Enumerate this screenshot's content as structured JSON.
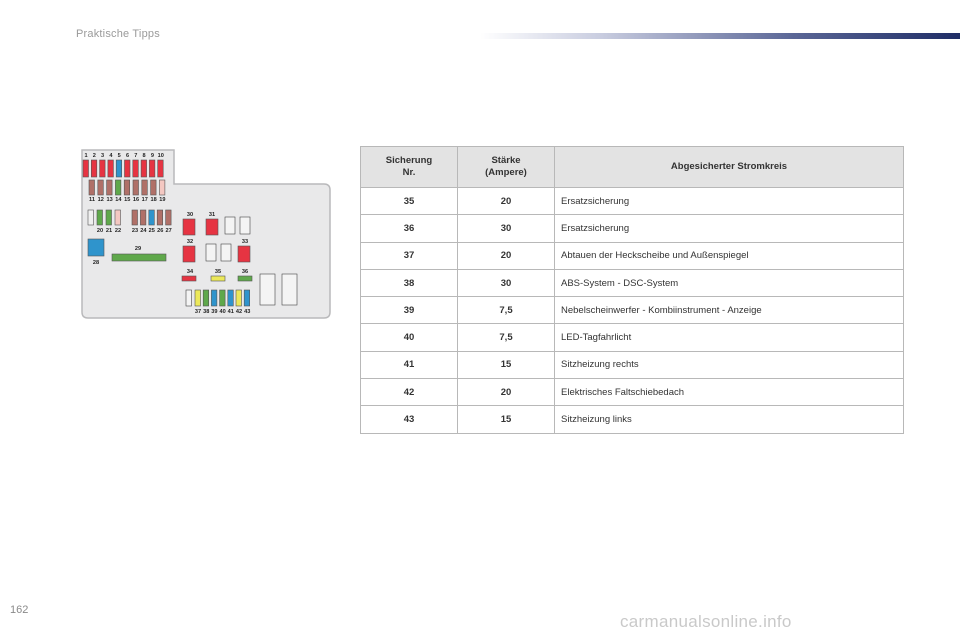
{
  "header": {
    "section_title": "Praktische Tipps"
  },
  "page": {
    "number": "162",
    "watermark": "carmanualsonline.info"
  },
  "colors": {
    "red": "#e63442",
    "brown": "#b07068",
    "green": "#5fa84b",
    "blue": "#2f94cc",
    "pink": "#f4c8c2",
    "yellow": "#ece85a",
    "header_bar": "#1f2d66"
  },
  "diagram": {
    "fuse_numbers": [
      "1",
      "2",
      "3",
      "4",
      "5",
      "6",
      "7",
      "8",
      "9",
      "10",
      "11",
      "12",
      "13",
      "14",
      "15",
      "16",
      "17",
      "18",
      "19",
      "20",
      "21",
      "22",
      "23",
      "24",
      "25",
      "26",
      "27",
      "28",
      "29",
      "30",
      "31",
      "32",
      "33",
      "34",
      "35",
      "36",
      "37",
      "38",
      "39",
      "40",
      "41",
      "42",
      "43"
    ]
  },
  "table": {
    "headers": {
      "fuse_no": "Sicherung\nNr.",
      "rating": "Stärke\n(Ampere)",
      "circuit": "Abgesicherter Stromkreis"
    },
    "rows": [
      {
        "no": "35",
        "amps": "20",
        "circuit": "Ersatzsicherung"
      },
      {
        "no": "36",
        "amps": "30",
        "circuit": "Ersatzsicherung"
      },
      {
        "no": "37",
        "amps": "20",
        "circuit": "Abtauen der Heckscheibe und Außenspiegel"
      },
      {
        "no": "38",
        "amps": "30",
        "circuit": "ABS-System - DSC-System"
      },
      {
        "no": "39",
        "amps": "7,5",
        "circuit": "Nebelscheinwerfer - Kombiinstrument - Anzeige"
      },
      {
        "no": "40",
        "amps": "7,5",
        "circuit": "LED-Tagfahrlicht"
      },
      {
        "no": "41",
        "amps": "15",
        "circuit": "Sitzheizung rechts"
      },
      {
        "no": "42",
        "amps": "20",
        "circuit": "Elektrisches Faltschiebedach"
      },
      {
        "no": "43",
        "amps": "15",
        "circuit": "Sitzheizung links"
      }
    ]
  }
}
